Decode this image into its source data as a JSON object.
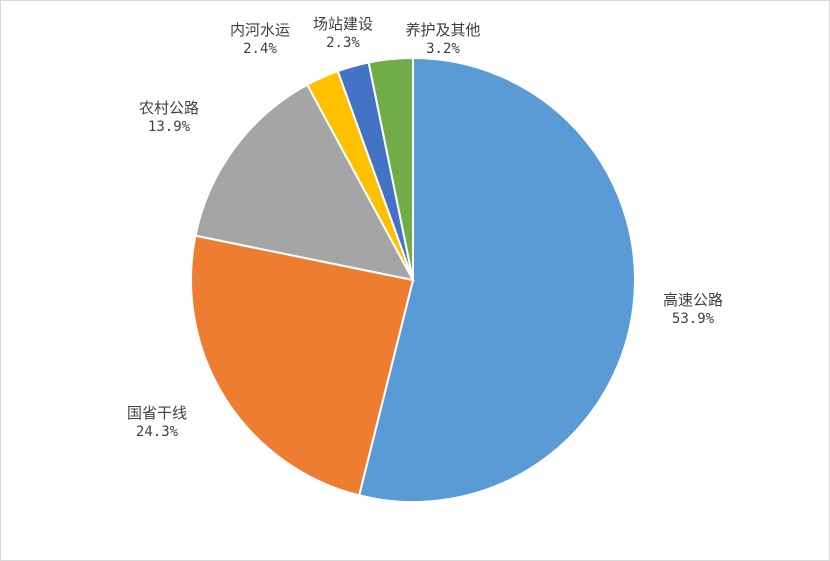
{
  "chart_data": {
    "type": "pie",
    "title": "",
    "start_angle_deg": 0,
    "direction": "clockwise",
    "slices": [
      {
        "key": "highway",
        "label": "高速公路",
        "value": 53.9,
        "value_label": "53.9%",
        "color": "#5b9bd5"
      },
      {
        "key": "national",
        "label": "国省干线",
        "value": 24.3,
        "value_label": "24.3%",
        "color": "#ed7d31"
      },
      {
        "key": "rural",
        "label": "农村公路",
        "value": 13.9,
        "value_label": "13.9%",
        "color": "#a5a5a5"
      },
      {
        "key": "waterway",
        "label": "内河水运",
        "value": 2.4,
        "value_label": "2.4%",
        "color": "#ffc000"
      },
      {
        "key": "station",
        "label": "场站建设",
        "value": 2.3,
        "value_label": "2.3%",
        "color": "#4472c4"
      },
      {
        "key": "other",
        "label": "养护及其他",
        "value": 3.2,
        "value_label": "3.2%",
        "color": "#70ad47"
      }
    ],
    "legend": "none"
  }
}
